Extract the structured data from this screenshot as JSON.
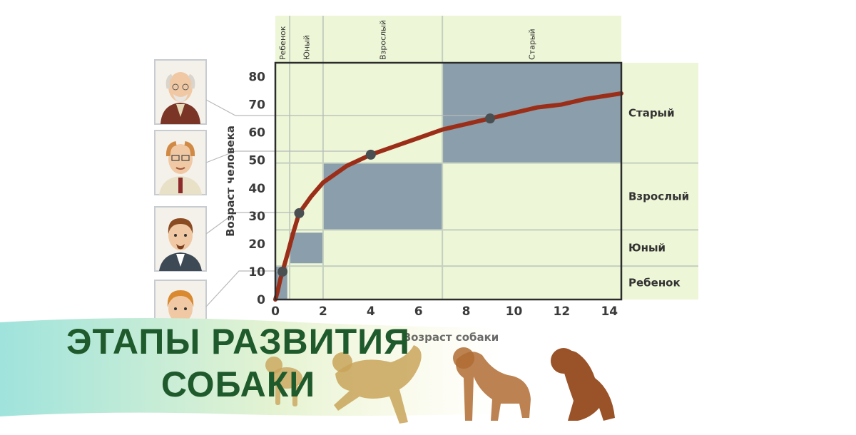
{
  "chart_data": {
    "type": "line",
    "xlabel": "Возраст собаки",
    "ylabel": "Возраст человека",
    "xlim": [
      0,
      14.5
    ],
    "ylim": [
      0,
      85
    ],
    "x_ticks": [
      0,
      2,
      4,
      6,
      8,
      10,
      12,
      14
    ],
    "y_ticks": [
      0,
      10,
      20,
      30,
      40,
      50,
      60,
      70,
      80
    ],
    "series": [
      {
        "x": [
          0,
          0.1,
          0.2,
          0.3,
          0.5,
          0.75,
          1,
          1.5,
          2,
          3,
          4,
          5,
          6,
          7,
          8,
          9,
          10,
          11,
          12,
          13,
          14.5
        ],
        "values": [
          0,
          3,
          7,
          10,
          16,
          24,
          31,
          37,
          42,
          48,
          52,
          55,
          58,
          61,
          63,
          65,
          67,
          69,
          70,
          72,
          74
        ],
        "color": "#9b2e18"
      }
    ],
    "markers": [
      {
        "x": 0.3,
        "y": 10
      },
      {
        "x": 1,
        "y": 31
      },
      {
        "x": 4,
        "y": 52
      },
      {
        "x": 9,
        "y": 65
      }
    ],
    "stage_boxes": [
      {
        "x0": 0,
        "x1": 0.5,
        "y0": 0,
        "y1": 12
      },
      {
        "x0": 0.6,
        "x1": 2,
        "y0": 13,
        "y1": 24
      },
      {
        "x0": 2,
        "x1": 7,
        "y0": 25,
        "y1": 49
      },
      {
        "x0": 7,
        "x1": 14.5,
        "y0": 49,
        "y1": 85
      }
    ],
    "top_stages": [
      {
        "label": "Ребенок",
        "x0": 0,
        "x1": 0.6
      },
      {
        "label": "Юный",
        "x0": 0.6,
        "x1": 2
      },
      {
        "label": "Взрослый",
        "x0": 2,
        "x1": 7
      },
      {
        "label": "Старый",
        "x0": 7,
        "x1": 14.5
      }
    ],
    "right_stages": [
      {
        "label": "Старый",
        "y0": 49,
        "y1": 85
      },
      {
        "label": "Взрослый",
        "y0": 25,
        "y1": 49
      },
      {
        "label": "Юный",
        "y0": 12,
        "y1": 25
      },
      {
        "label": "Ребенок",
        "y0": 0,
        "y1": 12
      }
    ],
    "grid": false
  },
  "banner": {
    "line1": "ЭТАПЫ РАЗВИТИЯ",
    "line2": "СОБАКИ"
  },
  "colors": {
    "panel": "#edf6d6",
    "stage_box": "#8a9eab",
    "curve": "#9b2e18",
    "marker": "#4a4f52",
    "banner_start": "#9fe3dc",
    "banner_end": "#f7f4c8",
    "title": "#1f5a2c",
    "dog": "#9a5a2c"
  },
  "illustrations": {
    "portraits": [
      "old-man",
      "middle-aged-man",
      "adult-man",
      "child"
    ],
    "dogs": [
      "puppy",
      "young-dog",
      "adult-dog",
      "old-dog"
    ]
  }
}
